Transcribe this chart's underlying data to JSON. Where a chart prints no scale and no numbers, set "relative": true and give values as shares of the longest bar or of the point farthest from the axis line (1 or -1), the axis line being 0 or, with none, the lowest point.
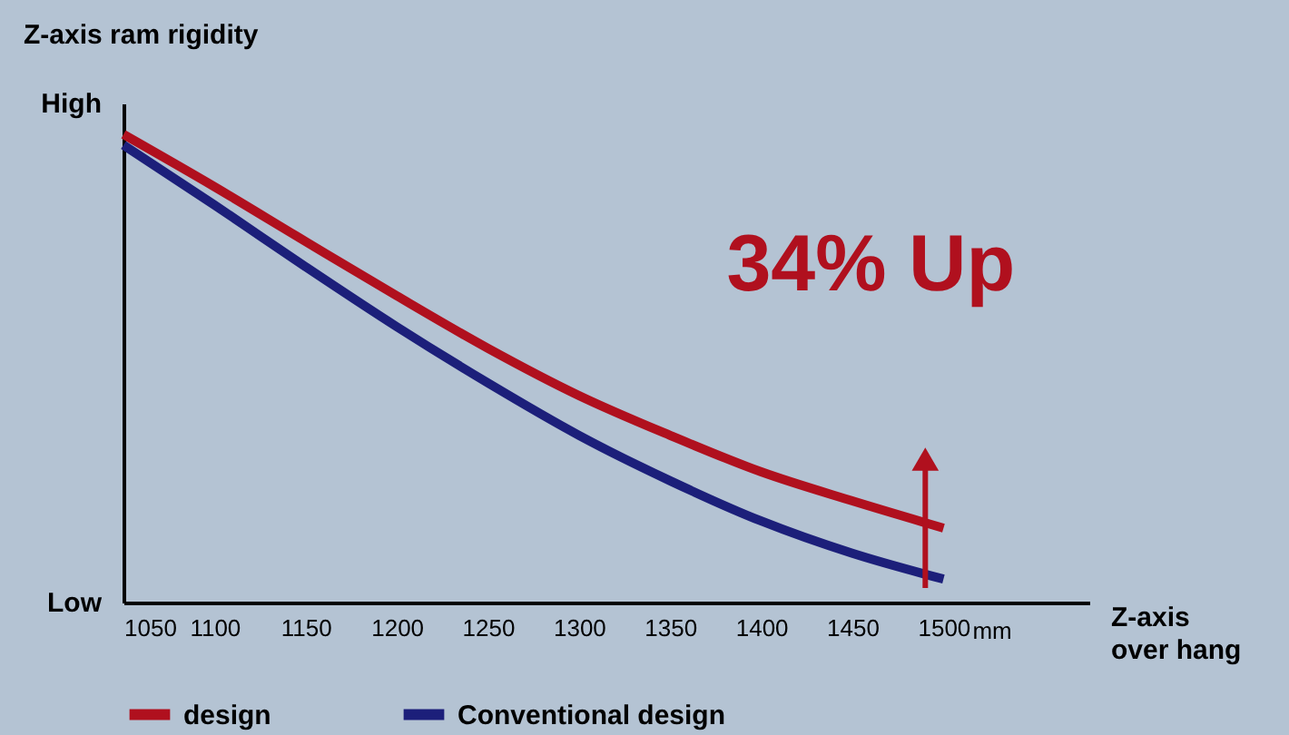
{
  "chart_data": {
    "type": "line",
    "relative": true,
    "ylabel": "Z-axis ram rigidity",
    "xlabel": "Z-axis over hang",
    "x": [
      1050,
      1100,
      1150,
      1200,
      1250,
      1300,
      1350,
      1400,
      1450,
      1500
    ],
    "xlim": [
      1050,
      1580
    ],
    "xticks": [
      1050,
      1100,
      1150,
      1200,
      1250,
      1300,
      1350,
      1400,
      1450,
      1500
    ],
    "series": [
      {
        "name": "design",
        "color": "#b0101e",
        "values": [
          1.0,
          0.888,
          0.771,
          0.655,
          0.543,
          0.442,
          0.357,
          0.279,
          0.217,
          0.159
        ]
      },
      {
        "name": "Conventional design",
        "color": "#1c1f7a",
        "values": [
          0.977,
          0.849,
          0.717,
          0.589,
          0.469,
          0.357,
          0.26,
          0.174,
          0.105,
          0.05
        ]
      }
    ],
    "annotations": [
      "High",
      "Low",
      "34% Up",
      "mm"
    ],
    "legend": "bottom",
    "grid": false,
    "marker": "none",
    "line_style": "solid"
  }
}
